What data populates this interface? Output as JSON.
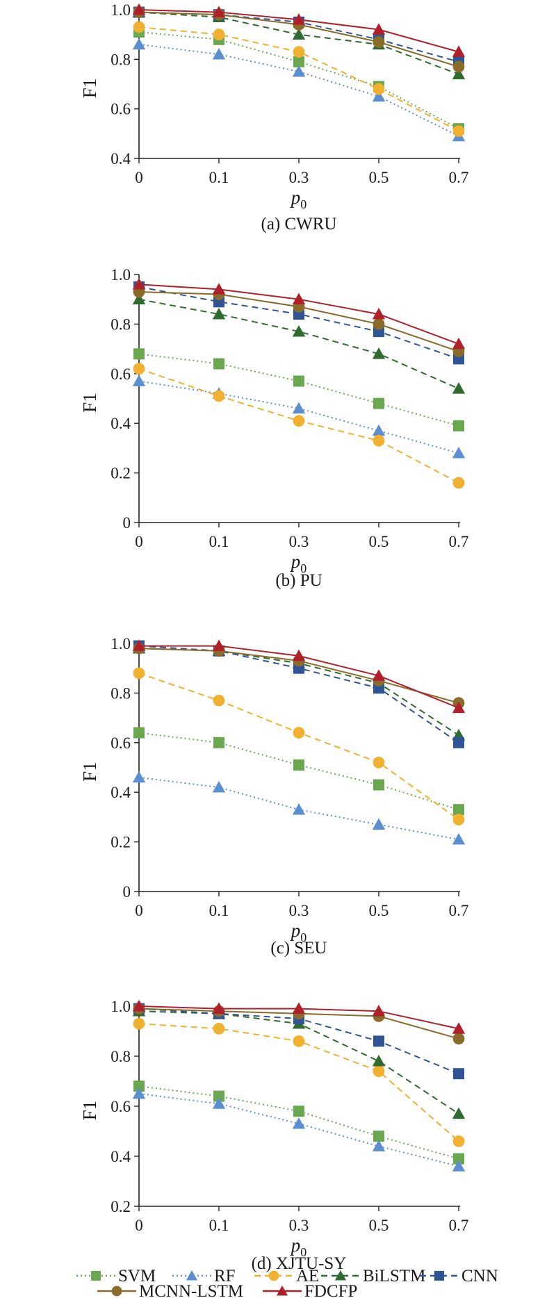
{
  "series_styles": [
    {
      "name": "SVM",
      "color": "#6aa84f",
      "marker": "square",
      "dash": "2,4"
    },
    {
      "name": "RF",
      "color": "#5b8fd0",
      "marker": "triangle",
      "dash": "2,4"
    },
    {
      "name": "AE",
      "color": "#f0b030",
      "marker": "circle",
      "dash": "9,6"
    },
    {
      "name": "BiLSTM",
      "color": "#2f6b2f",
      "marker": "triangle",
      "dash": "9,6"
    },
    {
      "name": "CNN",
      "color": "#2f5597",
      "marker": "square",
      "dash": "9,6"
    },
    {
      "name": "MCNN-LSTM",
      "color": "#8b6b2a",
      "marker": "circle",
      "dash": ""
    },
    {
      "name": "FDCFP",
      "color": "#b0202a",
      "marker": "triangle",
      "dash": ""
    }
  ],
  "chart_data": [
    {
      "type": "line",
      "caption": "(a) CWRU",
      "xlabel": "p",
      "xlabel_sub": "0",
      "ylabel": "F1",
      "categories": [
        "0",
        "0.1",
        "0.3",
        "0.5",
        "0.7"
      ],
      "ylim": [
        0.4,
        1.0
      ],
      "yticks": [
        "0.4",
        "0.6",
        "0.8",
        "1.0"
      ],
      "grid": false,
      "series": [
        {
          "name": "SVM",
          "values": [
            0.91,
            0.88,
            0.79,
            0.69,
            0.52
          ]
        },
        {
          "name": "RF",
          "values": [
            0.86,
            0.82,
            0.75,
            0.65,
            0.49
          ]
        },
        {
          "name": "AE",
          "values": [
            0.93,
            0.9,
            0.83,
            0.68,
            0.51
          ]
        },
        {
          "name": "BiLSTM",
          "values": [
            0.99,
            0.97,
            0.9,
            0.86,
            0.74
          ]
        },
        {
          "name": "CNN",
          "values": [
            0.99,
            0.98,
            0.95,
            0.88,
            0.79
          ]
        },
        {
          "name": "MCNN-LSTM",
          "values": [
            0.99,
            0.98,
            0.94,
            0.87,
            0.77
          ]
        },
        {
          "name": "FDCFP",
          "values": [
            1.0,
            0.99,
            0.96,
            0.92,
            0.83
          ]
        }
      ]
    },
    {
      "type": "line",
      "caption": "(b) PU",
      "xlabel": "p",
      "xlabel_sub": "0",
      "ylabel": "F1",
      "categories": [
        "0",
        "0.1",
        "0.3",
        "0.5",
        "0.7"
      ],
      "ylim": [
        0.0,
        1.0
      ],
      "yticks": [
        "0",
        "0.2",
        "0.4",
        "0.6",
        "0.8",
        "1.0"
      ],
      "grid": false,
      "series": [
        {
          "name": "SVM",
          "values": [
            0.68,
            0.64,
            0.57,
            0.48,
            0.39
          ]
        },
        {
          "name": "RF",
          "values": [
            0.57,
            0.52,
            0.46,
            0.37,
            0.28
          ]
        },
        {
          "name": "AE",
          "values": [
            0.62,
            0.51,
            0.41,
            0.33,
            0.16
          ]
        },
        {
          "name": "BiLSTM",
          "values": [
            0.9,
            0.84,
            0.77,
            0.68,
            0.54
          ]
        },
        {
          "name": "CNN",
          "values": [
            0.95,
            0.89,
            0.84,
            0.77,
            0.66
          ]
        },
        {
          "name": "MCNN-LSTM",
          "values": [
            0.93,
            0.92,
            0.87,
            0.8,
            0.69
          ]
        },
        {
          "name": "FDCFP",
          "values": [
            0.96,
            0.94,
            0.9,
            0.84,
            0.72
          ]
        }
      ]
    },
    {
      "type": "line",
      "caption": "(c) SEU",
      "xlabel": "p",
      "xlabel_sub": "0",
      "ylabel": "F1",
      "categories": [
        "0",
        "0.1",
        "0.3",
        "0.5",
        "0.7"
      ],
      "ylim": [
        0.0,
        1.0
      ],
      "yticks": [
        "0",
        "0.2",
        "0.4",
        "0.6",
        "0.8",
        "1.0"
      ],
      "grid": false,
      "series": [
        {
          "name": "SVM",
          "values": [
            0.64,
            0.6,
            0.51,
            0.43,
            0.33
          ]
        },
        {
          "name": "RF",
          "values": [
            0.46,
            0.42,
            0.33,
            0.27,
            0.21
          ]
        },
        {
          "name": "AE",
          "values": [
            0.88,
            0.77,
            0.64,
            0.52,
            0.29
          ]
        },
        {
          "name": "BiLSTM",
          "values": [
            0.98,
            0.97,
            0.92,
            0.84,
            0.63
          ]
        },
        {
          "name": "CNN",
          "values": [
            0.99,
            0.97,
            0.9,
            0.82,
            0.6
          ]
        },
        {
          "name": "MCNN-LSTM",
          "values": [
            0.98,
            0.97,
            0.93,
            0.85,
            0.76
          ]
        },
        {
          "name": "FDCFP",
          "values": [
            0.99,
            0.99,
            0.95,
            0.87,
            0.74
          ]
        }
      ]
    },
    {
      "type": "line",
      "caption": "(d) XJTU-SY",
      "xlabel": "p",
      "xlabel_sub": "0",
      "ylabel": "F1",
      "categories": [
        "0",
        "0.1",
        "0.3",
        "0.5",
        "0.7"
      ],
      "ylim": [
        0.2,
        1.0
      ],
      "yticks": [
        "0.2",
        "0.4",
        "0.6",
        "0.8",
        "1.0"
      ],
      "grid": false,
      "series": [
        {
          "name": "SVM",
          "values": [
            0.68,
            0.64,
            0.58,
            0.48,
            0.39
          ]
        },
        {
          "name": "RF",
          "values": [
            0.65,
            0.61,
            0.53,
            0.44,
            0.36
          ]
        },
        {
          "name": "AE",
          "values": [
            0.93,
            0.91,
            0.86,
            0.74,
            0.46
          ]
        },
        {
          "name": "BiLSTM",
          "values": [
            0.98,
            0.97,
            0.93,
            0.78,
            0.57
          ]
        },
        {
          "name": "CNN",
          "values": [
            0.99,
            0.97,
            0.95,
            0.86,
            0.73
          ]
        },
        {
          "name": "MCNN-LSTM",
          "values": [
            0.99,
            0.98,
            0.97,
            0.96,
            0.87
          ]
        },
        {
          "name": "FDCFP",
          "values": [
            1.0,
            0.99,
            0.99,
            0.98,
            0.91
          ]
        }
      ]
    }
  ],
  "legend": {
    "placement": "bottom",
    "entries": [
      "SVM",
      "RF",
      "AE",
      "BiLSTM",
      "CNN",
      "MCNN-LSTM",
      "FDCFP"
    ]
  }
}
